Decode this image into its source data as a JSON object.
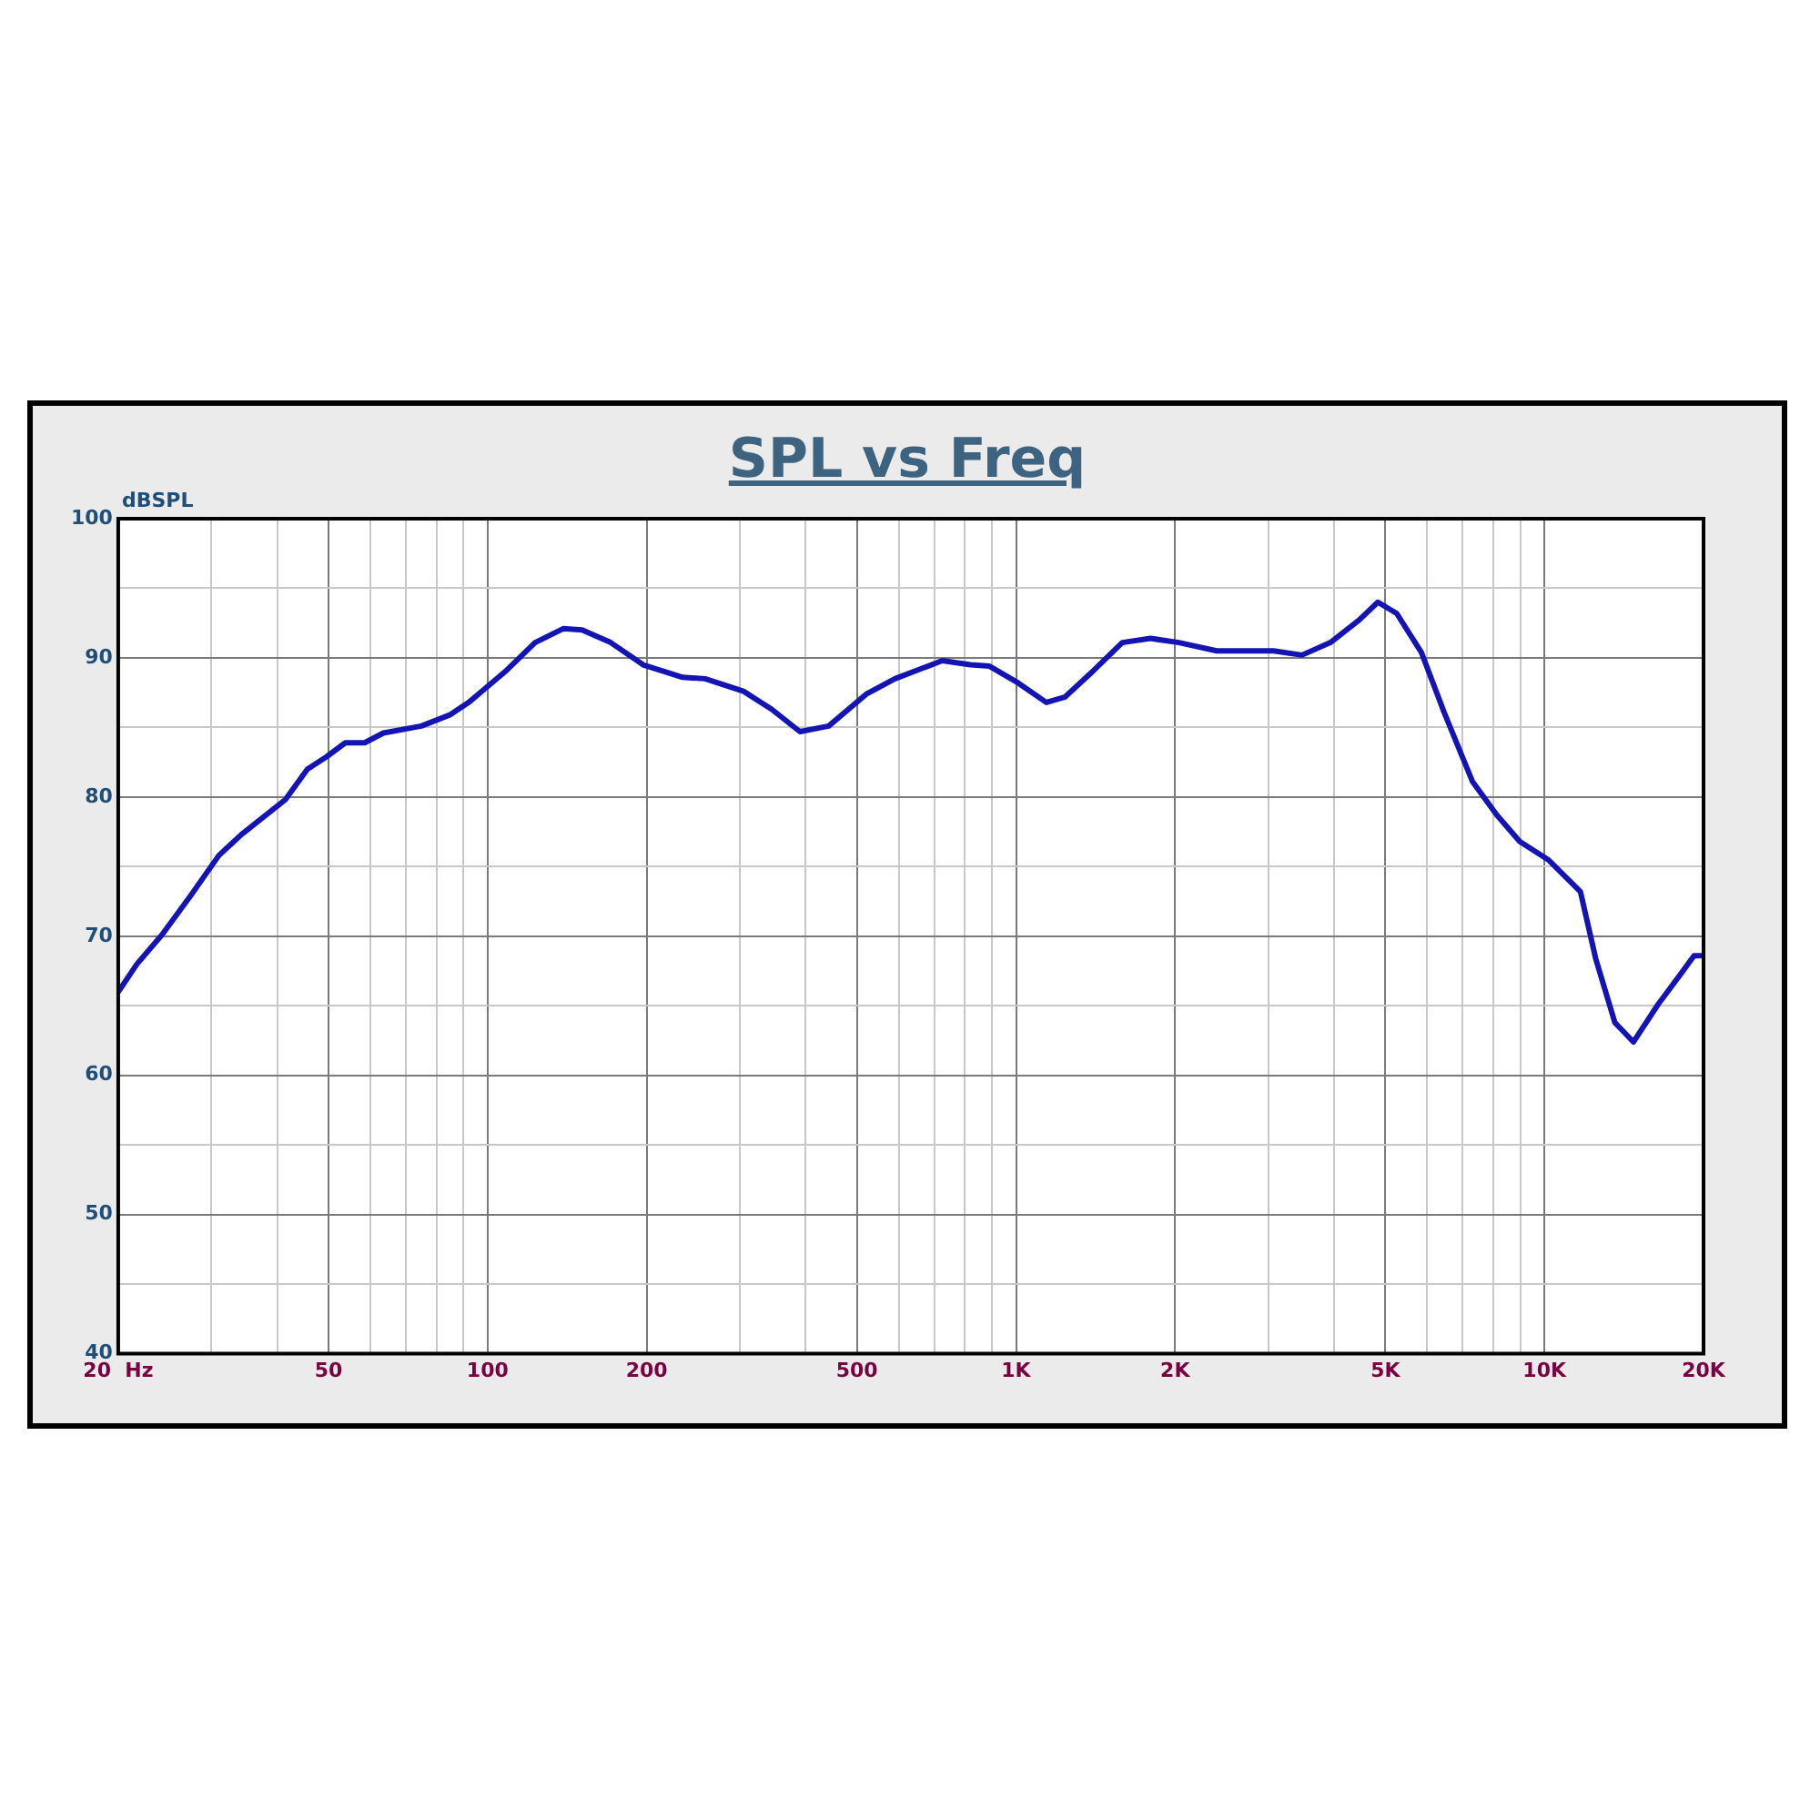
{
  "chart_data": {
    "type": "line",
    "title": "SPL vs Freq",
    "ylabel": "dBSPL",
    "x": [
      20,
      21.7,
      24.2,
      27.4,
      31,
      34.2,
      41.4,
      45.6,
      49.6,
      53.8,
      58.5,
      63.5,
      74.9,
      84.8,
      92.1,
      108.6,
      123,
      139,
      151,
      171,
      197,
      234,
      258,
      305,
      345,
      390,
      442,
      521,
      590,
      725,
      820,
      891,
      1009,
      1141,
      1239,
      1403,
      1589,
      1797,
      2033,
      2399,
      3072,
      3477,
      3935,
      4454,
      4839,
      5251,
      5849,
      6457,
      7311,
      8129,
      8980,
      10163,
      11697,
      12501,
      13590,
      14733,
      16407,
      18119,
      19190,
      20000
    ],
    "series": [
      {
        "color": "#1414b4",
        "values": [
          66.0,
          68.0,
          70.1,
          72.9,
          75.8,
          77.3,
          79.8,
          82.0,
          82.9,
          83.9,
          83.9,
          84.6,
          85.1,
          85.9,
          86.8,
          89.1,
          91.1,
          92.1,
          92.0,
          91.1,
          89.5,
          88.6,
          88.5,
          87.6,
          86.3,
          84.7,
          85.1,
          87.4,
          88.5,
          89.8,
          89.5,
          89.4,
          88.2,
          86.8,
          87.2,
          89.1,
          91.1,
          91.4,
          91.1,
          90.5,
          90.5,
          90.2,
          91.1,
          92.7,
          94.0,
          93.2,
          90.4,
          86.1,
          81.1,
          78.7,
          76.8,
          75.5,
          73.2,
          68.4,
          63.8,
          62.4,
          65.1,
          67.3,
          68.6,
          68.6
        ]
      }
    ],
    "log": "x",
    "xlim": [
      20,
      20000
    ],
    "xticks": [
      {
        "value": 20,
        "label": "20  Hz"
      },
      {
        "value": 30,
        "label": null
      },
      {
        "value": 40,
        "label": null
      },
      50,
      {
        "value": 60,
        "label": null
      },
      {
        "value": 70,
        "label": null
      },
      {
        "value": 80,
        "label": null
      },
      {
        "value": 90,
        "label": null
      },
      100,
      200,
      {
        "value": 300,
        "label": null
      },
      {
        "value": 400,
        "label": null
      },
      500,
      {
        "value": 600,
        "label": null
      },
      {
        "value": 700,
        "label": null
      },
      {
        "value": 800,
        "label": null
      },
      {
        "value": 900,
        "label": null
      },
      {
        "value": 1000,
        "label": "1K"
      },
      {
        "value": 2000,
        "label": "2K"
      },
      {
        "value": 3000,
        "label": null
      },
      {
        "value": 4000,
        "label": null
      },
      {
        "value": 5000,
        "label": "5K"
      },
      {
        "value": 6000,
        "label": null
      },
      {
        "value": 7000,
        "label": null
      },
      {
        "value": 8000,
        "label": null
      },
      {
        "value": 9000,
        "label": null
      },
      {
        "value": 10000,
        "label": "10K"
      },
      {
        "value": 20000,
        "label": "20K"
      }
    ],
    "ylim": [
      40,
      100
    ],
    "yticks": [
      40,
      {
        "value": 45,
        "label": null
      },
      50,
      {
        "value": 55,
        "label": null
      },
      60,
      {
        "value": 65,
        "label": null
      },
      70,
      {
        "value": 75,
        "label": null
      },
      80,
      {
        "value": 85,
        "label": null
      },
      90,
      {
        "value": 95,
        "label": null
      },
      100
    ],
    "grid": true,
    "legend": false,
    "marker": "none",
    "line_style": "solid"
  }
}
